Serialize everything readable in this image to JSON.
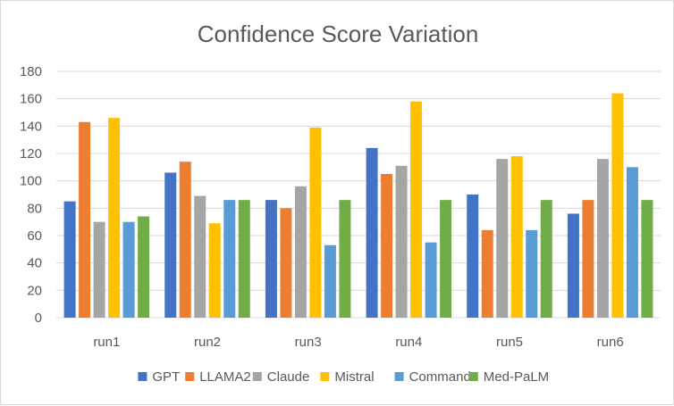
{
  "chart_data": {
    "type": "bar",
    "title": "Confidence Score Variation",
    "xlabel": "",
    "ylabel": "",
    "categories": [
      "run1",
      "run2",
      "run3",
      "run4",
      "run5",
      "run6"
    ],
    "ylim": [
      0,
      180
    ],
    "yticks": [
      0,
      20,
      40,
      60,
      80,
      100,
      120,
      140,
      160,
      180
    ],
    "grid": true,
    "legend_position": "bottom",
    "series": [
      {
        "name": "GPT",
        "color": "#4472c4",
        "values": [
          85,
          106,
          86,
          124,
          90,
          76
        ]
      },
      {
        "name": "LLAMA2",
        "color": "#ed7d31",
        "values": [
          143,
          114,
          80,
          105,
          64,
          86
        ]
      },
      {
        "name": "Claude",
        "color": "#a5a5a5",
        "values": [
          70,
          89,
          96,
          111,
          116,
          116
        ]
      },
      {
        "name": "Mistral",
        "color": "#ffc000",
        "values": [
          146,
          69,
          139,
          158,
          118,
          164
        ]
      },
      {
        "name": "Command",
        "color": "#5b9bd5",
        "values": [
          70,
          86,
          53,
          55,
          64,
          110
        ]
      },
      {
        "name": "Med-PaLM",
        "color": "#70ad47",
        "values": [
          74,
          86,
          86,
          86,
          86,
          86
        ]
      }
    ]
  }
}
